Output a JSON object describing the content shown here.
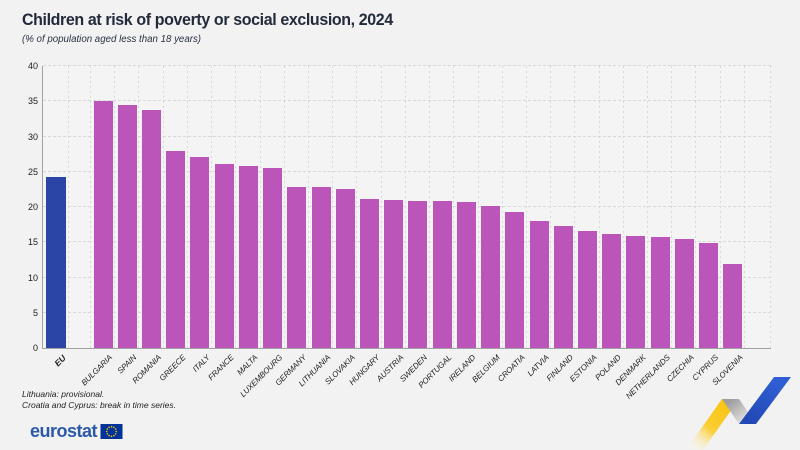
{
  "title": "Children at risk of poverty or social exclusion, 2024",
  "subtitle": "(% of population aged less than 18 years)",
  "notes": {
    "line1": "Lithuania: provisional.",
    "line2": "Croatia and Cyprus: break in time series."
  },
  "logo": {
    "text": "eurostat"
  },
  "colors": {
    "background": "#f2f2f2",
    "bar": "#bb55b9",
    "eu_bar": "#2b45a7",
    "title_text": "#232b3b",
    "logo_blue": "#2c59a8",
    "flag_blue": "#003399",
    "flag_star_yellow": "#ffcc00",
    "zigzag_yellow": "#f8c30d",
    "zigzag_gray": "#9e9e9e",
    "zigzag_blue": "#2b57c9"
  },
  "chart_data": {
    "type": "bar",
    "title": "Children at risk of poverty or social exclusion, 2024",
    "subtitle": "(% of population aged less than 18 years)",
    "xlabel": "",
    "ylabel": "% of population aged less than 18 years",
    "ylim": [
      0,
      40
    ],
    "ytick_step": 5,
    "grid": true,
    "legend": "none",
    "highlight_category": "EU",
    "categories": [
      "EU",
      "BULGARIA",
      "SPAIN",
      "ROMANIA",
      "GREECE",
      "ITALY",
      "FRANCE",
      "MALTA",
      "LUXEMBOURG",
      "GERMANY",
      "LITHUANIA",
      "SLOVAKIA",
      "HUNGARY",
      "AUSTRIA",
      "SWEDEN",
      "PORTUGAL",
      "IRELAND",
      "BELGIUM",
      "CROATIA",
      "LATVIA",
      "FINLAND",
      "ESTONIA",
      "POLAND",
      "DENMARK",
      "NETHERLANDS",
      "CZECHIA",
      "CYPRUS",
      "SLOVENIA"
    ],
    "values": [
      24.2,
      35.0,
      34.5,
      33.8,
      27.9,
      27.1,
      26.1,
      25.8,
      25.5,
      22.9,
      22.8,
      22.6,
      21.2,
      21.0,
      20.9,
      20.8,
      20.7,
      20.2,
      19.3,
      18.0,
      17.3,
      16.6,
      16.2,
      15.9,
      15.8,
      15.4,
      14.9,
      11.9
    ]
  }
}
